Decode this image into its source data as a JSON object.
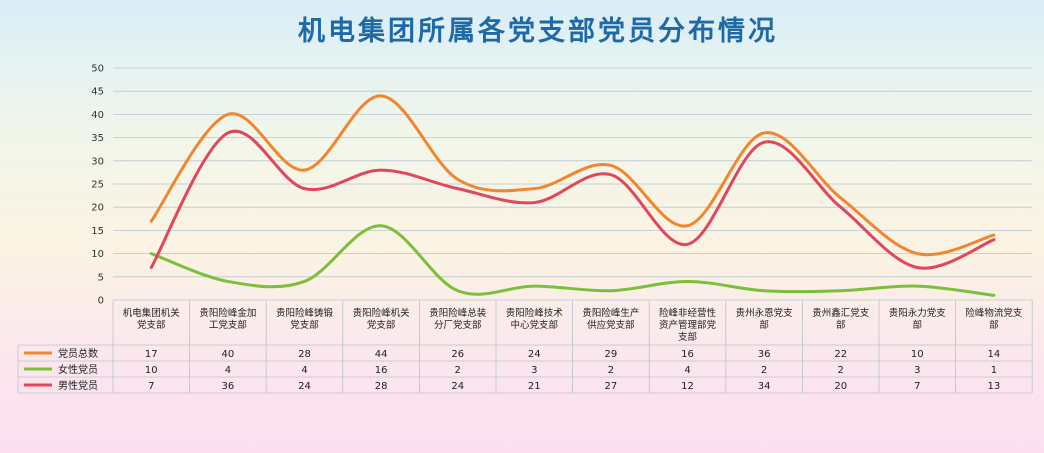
{
  "chart_data": {
    "type": "line",
    "title": "机电集团所属各党支部党员分布情况",
    "categories": [
      "机电集团机关党支部",
      "贵阳险峰金加工党支部",
      "贵阳险峰铸锻党支部",
      "贵阳险峰机关党支部",
      "贵阳险峰总装分厂党支部",
      "贵阳险峰技术中心党支部",
      "贵阳险峰生产供应党支部",
      "险峰非经营性资产管理部党支部",
      "贵州永恩党支部",
      "贵州鑫汇党支部",
      "贵阳永力党支部",
      "险峰物流党支部"
    ],
    "series": [
      {
        "name": "党员总数",
        "color": "#f0862e",
        "values": [
          17,
          40,
          28,
          44,
          26,
          24,
          29,
          16,
          36,
          22,
          10,
          14
        ]
      },
      {
        "name": "女性党员",
        "color": "#7cbf3c",
        "values": [
          10,
          4,
          4,
          16,
          2,
          3,
          2,
          4,
          2,
          2,
          3,
          1
        ]
      },
      {
        "name": "男性党员",
        "color": "#e0475b",
        "values": [
          7,
          36,
          24,
          28,
          24,
          21,
          27,
          12,
          34,
          20,
          7,
          13
        ]
      }
    ],
    "ylim": [
      0,
      50
    ],
    "yticks": [
      0,
      5,
      10,
      15,
      20,
      25,
      30,
      35,
      40,
      45,
      50
    ],
    "grid": true,
    "legend": "data-table",
    "xlabel": "",
    "ylabel": ""
  }
}
